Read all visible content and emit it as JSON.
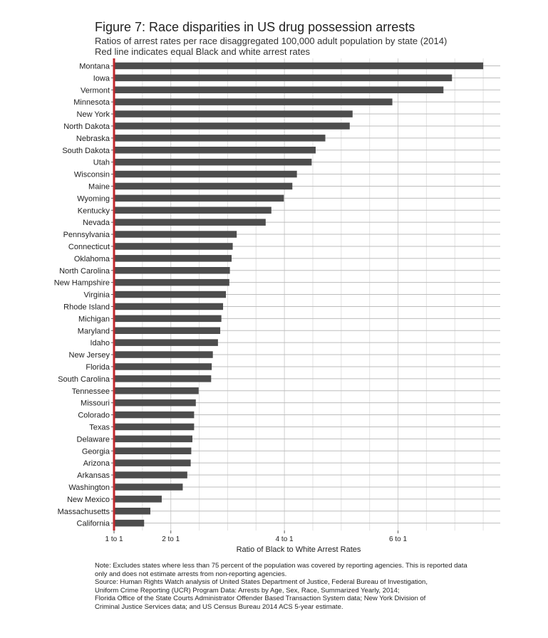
{
  "title": "Figure 7: Race disparities in US drug possession arrests",
  "subtitle_line1": "Ratios of arrest rates per race disaggregated 100,000 adult population by state (2014)",
  "subtitle_line2": "Red line indicates equal Black and white arrest rates",
  "chart_data": {
    "type": "bar",
    "orientation": "horizontal",
    "categories": [
      "Montana",
      "Iowa",
      "Vermont",
      "Minnesota",
      "New York",
      "North Dakota",
      "Nebraska",
      "South Dakota",
      "Utah",
      "Wisconsin",
      "Maine",
      "Wyoming",
      "Kentucky",
      "Nevada",
      "Pennsylvania",
      "Connecticut",
      "Oklahoma",
      "North Carolina",
      "New Hampshire",
      "Virginia",
      "Rhode Island",
      "Michigan",
      "Maryland",
      "Idaho",
      "New Jersey",
      "Florida",
      "South Carolina",
      "Tennessee",
      "Missouri",
      "Colorado",
      "Texas",
      "Delaware",
      "Georgia",
      "Arizona",
      "Arkansas",
      "Washington",
      "New Mexico",
      "Massachusetts",
      "California"
    ],
    "values": [
      7.5,
      6.95,
      6.8,
      5.9,
      5.2,
      5.15,
      4.72,
      4.55,
      4.48,
      4.22,
      4.14,
      3.99,
      3.77,
      3.67,
      3.16,
      3.09,
      3.07,
      3.04,
      3.03,
      2.97,
      2.92,
      2.89,
      2.87,
      2.83,
      2.74,
      2.72,
      2.71,
      2.49,
      2.44,
      2.41,
      2.41,
      2.38,
      2.36,
      2.35,
      2.29,
      2.21,
      1.84,
      1.64,
      1.53
    ],
    "xlabel": "Ratio of Black to White Arrest Rates",
    "xticks": [
      1,
      2,
      4,
      6
    ],
    "xtick_labels": [
      "1 to 1",
      "2 to 1",
      "4 to 1",
      "6 to 1"
    ],
    "xlim": [
      1,
      7.8
    ],
    "reference_line": 1,
    "grid": true,
    "colors": {
      "bar": "#4d4d4d",
      "reference": "#c0282d",
      "grid": "#d6d6d6"
    }
  },
  "notes": [
    "Note: Excludes states where less than 75 percent of the population was covered by reporting agencies. This is reported data",
    "only and does not estimate arrests from non-reporting agencies.",
    "Source: Human Rights Watch analysis of United States Department of Justice, Federal Bureau of Investigation,",
    "Uniform Crime Reporting (UCR) Program Data: Arrests by Age, Sex, Race, Summarized Yearly, 2014;",
    "Florida Office of the State Courts Administrator Offender Based Transaction System data; New York Division of",
    "Criminal Justice Services data; and US Census Bureau 2014 ACS 5-year estimate."
  ]
}
